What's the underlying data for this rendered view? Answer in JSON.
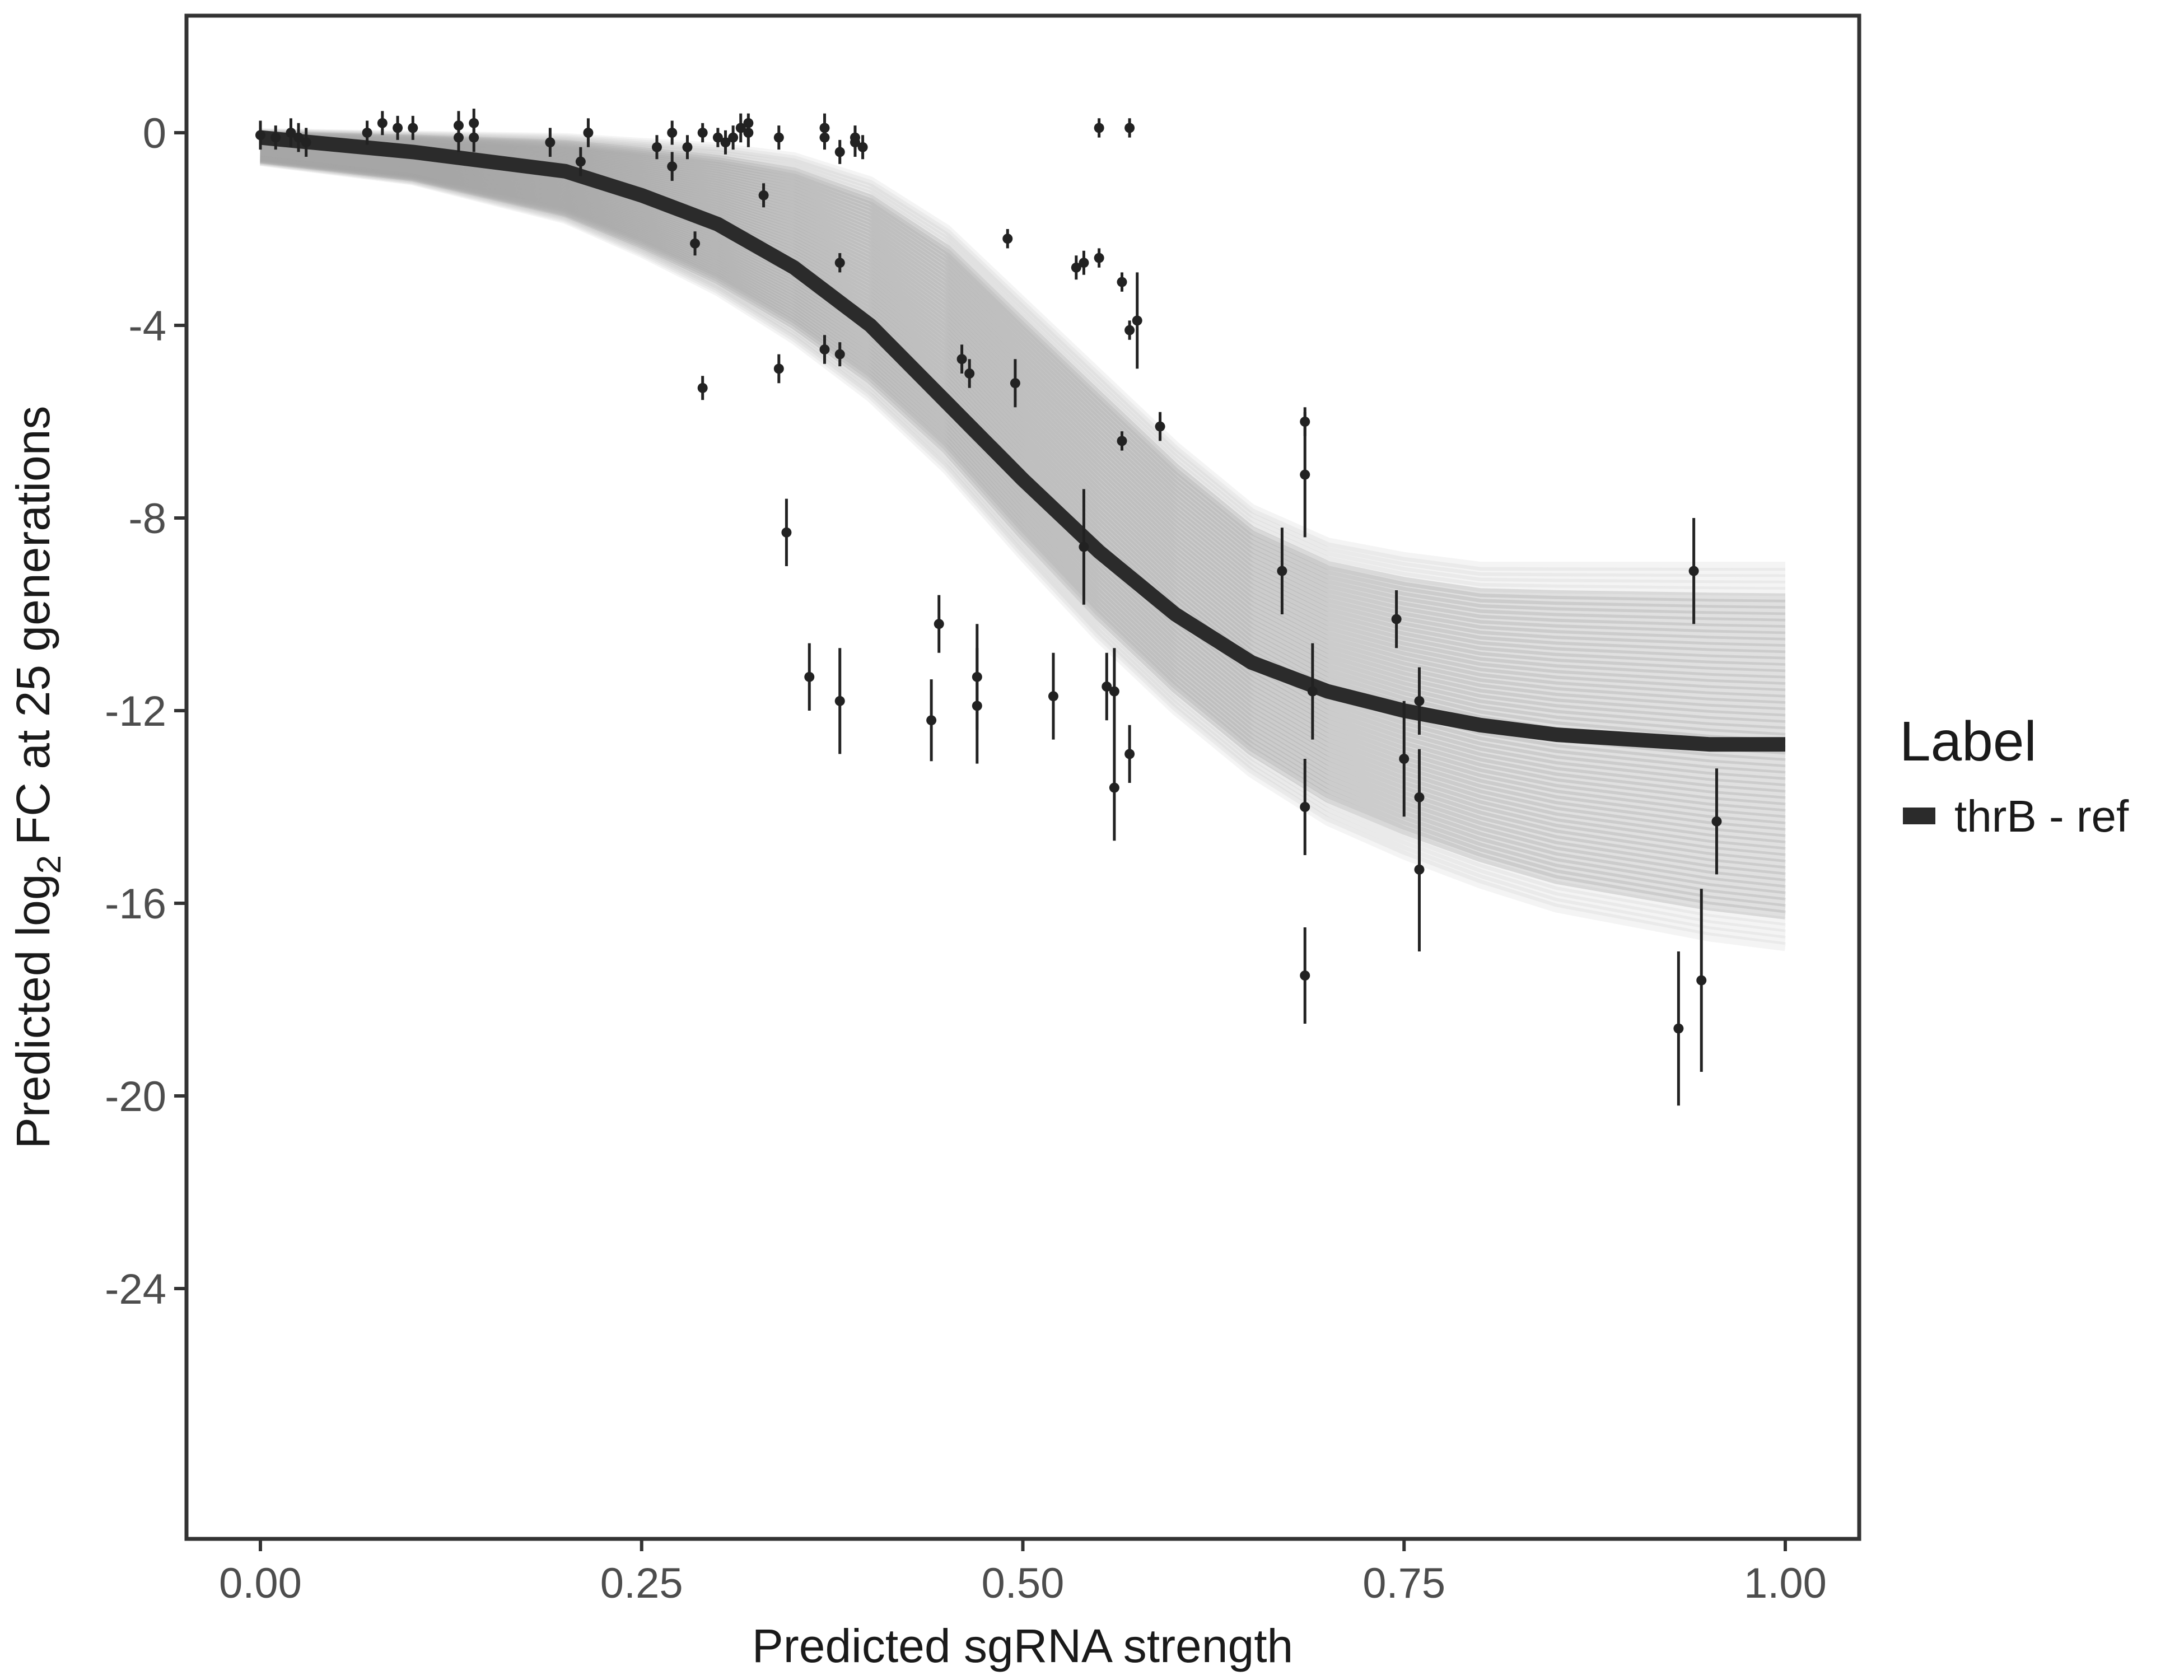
{
  "chart_data": {
    "type": "scatter",
    "title": "",
    "xlabel": "Predicted sgRNA strength",
    "ylabel": {
      "prefix": "Predicted",
      "log": "log",
      "sub": "2",
      "suffix": "FC at 25 generations"
    },
    "xlim": [
      -0.05,
      1.05
    ],
    "ylim": [
      -29.5,
      2.5
    ],
    "x_ticks": [
      0,
      0.25,
      0.5,
      0.75,
      1
    ],
    "x_tick_labels": [
      "0.00",
      "0.25",
      "0.50",
      "0.75",
      "1.00"
    ],
    "y_ticks": [
      0,
      -4,
      -8,
      -12,
      -16,
      -20,
      -24
    ],
    "y_tick_labels": [
      "0",
      "-4",
      "-8",
      "-12",
      "-16",
      "-20",
      "-24"
    ],
    "grid": false,
    "legend": {
      "title": "Label",
      "position": "right",
      "entries": [
        {
          "label": "thrB - ref",
          "color": "#2b2b2b"
        }
      ]
    },
    "fit_curve": {
      "name": "thrB - ref",
      "x": [
        0,
        0.1,
        0.2,
        0.25,
        0.3,
        0.35,
        0.4,
        0.45,
        0.5,
        0.55,
        0.6,
        0.65,
        0.7,
        0.75,
        0.8,
        0.85,
        0.9,
        0.95,
        1.0
      ],
      "y": [
        -0.1,
        -0.4,
        -0.8,
        -1.3,
        -1.9,
        -2.8,
        -4.0,
        -5.6,
        -7.2,
        -8.7,
        -10.0,
        -11.0,
        -11.6,
        -12.0,
        -12.3,
        -12.5,
        -12.6,
        -12.7,
        -12.7
      ],
      "color": "#2b2b2b"
    },
    "posterior_band": {
      "x": [
        0,
        0.1,
        0.2,
        0.25,
        0.3,
        0.35,
        0.4,
        0.45,
        0.5,
        0.55,
        0.6,
        0.65,
        0.7,
        0.75,
        0.8,
        0.85,
        0.9,
        0.95,
        1.0
      ],
      "upper": [
        0.0,
        -0.05,
        -0.1,
        -0.2,
        -0.3,
        -0.5,
        -1.0,
        -2.0,
        -3.5,
        -5.0,
        -6.5,
        -7.8,
        -8.5,
        -8.8,
        -9.0,
        -9.0,
        -9.0,
        -9.0,
        -9.0
      ],
      "lower": [
        -0.6,
        -1.0,
        -1.8,
        -2.5,
        -3.3,
        -4.3,
        -5.5,
        -7.0,
        -8.8,
        -10.5,
        -12.0,
        -13.3,
        -14.3,
        -15.0,
        -15.6,
        -16.1,
        -16.4,
        -16.7,
        -16.9
      ],
      "color": "#a6a6a6"
    },
    "points": [
      {
        "x": 0.0,
        "y": -0.05,
        "err": 0.3
      },
      {
        "x": 0.01,
        "y": -0.1,
        "err": 0.25
      },
      {
        "x": 0.02,
        "y": 0.0,
        "err": 0.3
      },
      {
        "x": 0.025,
        "y": -0.1,
        "err": 0.3
      },
      {
        "x": 0.03,
        "y": -0.2,
        "err": 0.3
      },
      {
        "x": 0.07,
        "y": 0.0,
        "err": 0.25
      },
      {
        "x": 0.08,
        "y": 0.2,
        "err": 0.25
      },
      {
        "x": 0.09,
        "y": 0.1,
        "err": 0.25
      },
      {
        "x": 0.1,
        "y": 0.1,
        "err": 0.25
      },
      {
        "x": 0.13,
        "y": 0.15,
        "err": 0.3
      },
      {
        "x": 0.13,
        "y": -0.1,
        "err": 0.3
      },
      {
        "x": 0.14,
        "y": 0.2,
        "err": 0.3
      },
      {
        "x": 0.14,
        "y": -0.1,
        "err": 0.3
      },
      {
        "x": 0.19,
        "y": -0.2,
        "err": 0.3
      },
      {
        "x": 0.21,
        "y": -0.6,
        "err": 0.3
      },
      {
        "x": 0.215,
        "y": 0.0,
        "err": 0.3
      },
      {
        "x": 0.26,
        "y": -0.3,
        "err": 0.25
      },
      {
        "x": 0.27,
        "y": 0.0,
        "err": 0.25
      },
      {
        "x": 0.27,
        "y": -0.7,
        "err": 0.3
      },
      {
        "x": 0.28,
        "y": -0.3,
        "err": 0.25
      },
      {
        "x": 0.285,
        "y": -2.3,
        "err": 0.25
      },
      {
        "x": 0.29,
        "y": 0.0,
        "err": 0.2
      },
      {
        "x": 0.29,
        "y": -5.3,
        "err": 0.25
      },
      {
        "x": 0.3,
        "y": -0.1,
        "err": 0.2
      },
      {
        "x": 0.305,
        "y": -0.2,
        "err": 0.25
      },
      {
        "x": 0.31,
        "y": -0.1,
        "err": 0.25
      },
      {
        "x": 0.315,
        "y": 0.1,
        "err": 0.3
      },
      {
        "x": 0.32,
        "y": 0.2,
        "err": 0.2
      },
      {
        "x": 0.32,
        "y": 0.0,
        "err": 0.3
      },
      {
        "x": 0.33,
        "y": -1.3,
        "err": 0.25
      },
      {
        "x": 0.34,
        "y": -0.1,
        "err": 0.25
      },
      {
        "x": 0.34,
        "y": -4.9,
        "err": 0.3
      },
      {
        "x": 0.345,
        "y": -8.3,
        "err": 0.7
      },
      {
        "x": 0.36,
        "y": -11.3,
        "err": 0.7
      },
      {
        "x": 0.37,
        "y": 0.1,
        "err": 0.3
      },
      {
        "x": 0.37,
        "y": -0.1,
        "err": 0.25
      },
      {
        "x": 0.37,
        "y": -4.5,
        "err": 0.3
      },
      {
        "x": 0.38,
        "y": -0.4,
        "err": 0.25
      },
      {
        "x": 0.38,
        "y": -2.7,
        "err": 0.2
      },
      {
        "x": 0.38,
        "y": -4.6,
        "err": 0.25
      },
      {
        "x": 0.38,
        "y": -11.8,
        "err": 1.1
      },
      {
        "x": 0.39,
        "y": -0.1,
        "err": 0.25
      },
      {
        "x": 0.39,
        "y": -0.2,
        "err": 0.3
      },
      {
        "x": 0.395,
        "y": -0.3,
        "err": 0.25
      },
      {
        "x": 0.44,
        "y": -12.2,
        "err": 0.85
      },
      {
        "x": 0.445,
        "y": -10.2,
        "err": 0.6
      },
      {
        "x": 0.46,
        "y": -4.7,
        "err": 0.3
      },
      {
        "x": 0.465,
        "y": -5.0,
        "err": 0.3
      },
      {
        "x": 0.47,
        "y": -11.3,
        "err": 1.1
      },
      {
        "x": 0.47,
        "y": -11.9,
        "err": 1.2
      },
      {
        "x": 0.49,
        "y": -2.2,
        "err": 0.2
      },
      {
        "x": 0.495,
        "y": -5.2,
        "err": 0.5
      },
      {
        "x": 0.52,
        "y": -11.7,
        "err": 0.9
      },
      {
        "x": 0.535,
        "y": -2.8,
        "err": 0.25
      },
      {
        "x": 0.54,
        "y": -2.7,
        "err": 0.25
      },
      {
        "x": 0.54,
        "y": -8.6,
        "err": 1.2
      },
      {
        "x": 0.55,
        "y": 0.1,
        "err": 0.2
      },
      {
        "x": 0.55,
        "y": -2.6,
        "err": 0.2
      },
      {
        "x": 0.555,
        "y": -11.5,
        "err": 0.7
      },
      {
        "x": 0.56,
        "y": -11.6,
        "err": 0.9
      },
      {
        "x": 0.56,
        "y": -13.6,
        "err": 1.1
      },
      {
        "x": 0.565,
        "y": -3.1,
        "err": 0.2
      },
      {
        "x": 0.565,
        "y": -6.4,
        "err": 0.2
      },
      {
        "x": 0.57,
        "y": 0.1,
        "err": 0.2
      },
      {
        "x": 0.57,
        "y": -4.1,
        "err": 0.2
      },
      {
        "x": 0.57,
        "y": -12.9,
        "err": 0.6
      },
      {
        "x": 0.575,
        "y": -3.9,
        "err": 1.0
      },
      {
        "x": 0.59,
        "y": -6.1,
        "err": 0.3
      },
      {
        "x": 0.67,
        "y": -9.1,
        "err": 0.9
      },
      {
        "x": 0.685,
        "y": -6.0,
        "err": 0.3
      },
      {
        "x": 0.685,
        "y": -7.1,
        "err": 1.3
      },
      {
        "x": 0.69,
        "y": -11.6,
        "err": 1.0
      },
      {
        "x": 0.685,
        "y": -14.0,
        "err": 1.0
      },
      {
        "x": 0.685,
        "y": -17.5,
        "err": 1.0
      },
      {
        "x": 0.745,
        "y": -10.1,
        "err": 0.6
      },
      {
        "x": 0.75,
        "y": -13.0,
        "err": 1.2
      },
      {
        "x": 0.76,
        "y": -11.8,
        "err": 0.7
      },
      {
        "x": 0.76,
        "y": -13.8,
        "err": 1.0
      },
      {
        "x": 0.76,
        "y": -15.3,
        "err": 1.7
      },
      {
        "x": 0.93,
        "y": -18.6,
        "err": 1.6
      },
      {
        "x": 0.94,
        "y": -9.1,
        "err": 1.1
      },
      {
        "x": 0.945,
        "y": -17.6,
        "err": 1.9
      },
      {
        "x": 0.955,
        "y": -14.3,
        "err": 1.1
      }
    ]
  }
}
